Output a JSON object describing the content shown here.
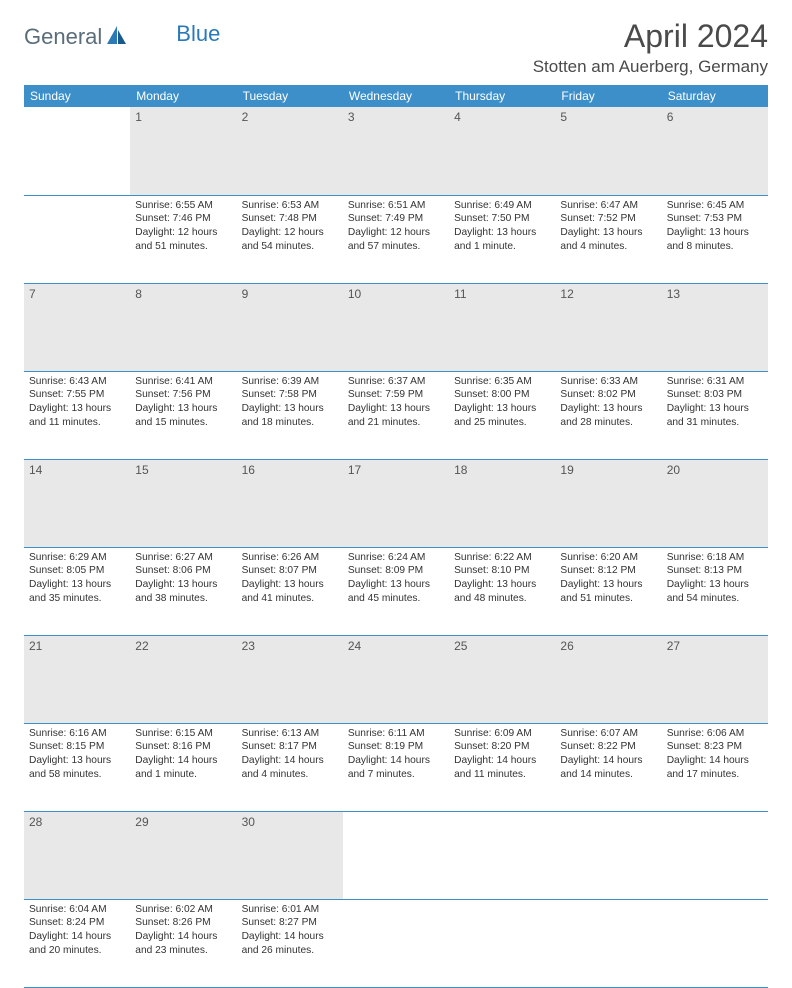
{
  "brand": {
    "part1": "General",
    "part2": "Blue"
  },
  "title": "April 2024",
  "location": "Stotten am Auerberg, Germany",
  "colors": {
    "header_bg": "#3d8fc9",
    "header_text": "#ffffff",
    "daynum_bg": "#e8e8e8",
    "border": "#3d8fc9",
    "brand_gray": "#5a6e7a",
    "brand_blue": "#2a7ab8"
  },
  "weekdays": [
    "Sunday",
    "Monday",
    "Tuesday",
    "Wednesday",
    "Thursday",
    "Friday",
    "Saturday"
  ],
  "weeks": [
    {
      "nums": [
        "",
        "1",
        "2",
        "3",
        "4",
        "5",
        "6"
      ],
      "cells": [
        "",
        "Sunrise: 6:55 AM\nSunset: 7:46 PM\nDaylight: 12 hours and 51 minutes.",
        "Sunrise: 6:53 AM\nSunset: 7:48 PM\nDaylight: 12 hours and 54 minutes.",
        "Sunrise: 6:51 AM\nSunset: 7:49 PM\nDaylight: 12 hours and 57 minutes.",
        "Sunrise: 6:49 AM\nSunset: 7:50 PM\nDaylight: 13 hours and 1 minute.",
        "Sunrise: 6:47 AM\nSunset: 7:52 PM\nDaylight: 13 hours and 4 minutes.",
        "Sunrise: 6:45 AM\nSunset: 7:53 PM\nDaylight: 13 hours and 8 minutes."
      ]
    },
    {
      "nums": [
        "7",
        "8",
        "9",
        "10",
        "11",
        "12",
        "13"
      ],
      "cells": [
        "Sunrise: 6:43 AM\nSunset: 7:55 PM\nDaylight: 13 hours and 11 minutes.",
        "Sunrise: 6:41 AM\nSunset: 7:56 PM\nDaylight: 13 hours and 15 minutes.",
        "Sunrise: 6:39 AM\nSunset: 7:58 PM\nDaylight: 13 hours and 18 minutes.",
        "Sunrise: 6:37 AM\nSunset: 7:59 PM\nDaylight: 13 hours and 21 minutes.",
        "Sunrise: 6:35 AM\nSunset: 8:00 PM\nDaylight: 13 hours and 25 minutes.",
        "Sunrise: 6:33 AM\nSunset: 8:02 PM\nDaylight: 13 hours and 28 minutes.",
        "Sunrise: 6:31 AM\nSunset: 8:03 PM\nDaylight: 13 hours and 31 minutes."
      ]
    },
    {
      "nums": [
        "14",
        "15",
        "16",
        "17",
        "18",
        "19",
        "20"
      ],
      "cells": [
        "Sunrise: 6:29 AM\nSunset: 8:05 PM\nDaylight: 13 hours and 35 minutes.",
        "Sunrise: 6:27 AM\nSunset: 8:06 PM\nDaylight: 13 hours and 38 minutes.",
        "Sunrise: 6:26 AM\nSunset: 8:07 PM\nDaylight: 13 hours and 41 minutes.",
        "Sunrise: 6:24 AM\nSunset: 8:09 PM\nDaylight: 13 hours and 45 minutes.",
        "Sunrise: 6:22 AM\nSunset: 8:10 PM\nDaylight: 13 hours and 48 minutes.",
        "Sunrise: 6:20 AM\nSunset: 8:12 PM\nDaylight: 13 hours and 51 minutes.",
        "Sunrise: 6:18 AM\nSunset: 8:13 PM\nDaylight: 13 hours and 54 minutes."
      ]
    },
    {
      "nums": [
        "21",
        "22",
        "23",
        "24",
        "25",
        "26",
        "27"
      ],
      "cells": [
        "Sunrise: 6:16 AM\nSunset: 8:15 PM\nDaylight: 13 hours and 58 minutes.",
        "Sunrise: 6:15 AM\nSunset: 8:16 PM\nDaylight: 14 hours and 1 minute.",
        "Sunrise: 6:13 AM\nSunset: 8:17 PM\nDaylight: 14 hours and 4 minutes.",
        "Sunrise: 6:11 AM\nSunset: 8:19 PM\nDaylight: 14 hours and 7 minutes.",
        "Sunrise: 6:09 AM\nSunset: 8:20 PM\nDaylight: 14 hours and 11 minutes.",
        "Sunrise: 6:07 AM\nSunset: 8:22 PM\nDaylight: 14 hours and 14 minutes.",
        "Sunrise: 6:06 AM\nSunset: 8:23 PM\nDaylight: 14 hours and 17 minutes."
      ]
    },
    {
      "nums": [
        "28",
        "29",
        "30",
        "",
        "",
        "",
        ""
      ],
      "cells": [
        "Sunrise: 6:04 AM\nSunset: 8:24 PM\nDaylight: 14 hours and 20 minutes.",
        "Sunrise: 6:02 AM\nSunset: 8:26 PM\nDaylight: 14 hours and 23 minutes.",
        "Sunrise: 6:01 AM\nSunset: 8:27 PM\nDaylight: 14 hours and 26 minutes.",
        "",
        "",
        "",
        ""
      ]
    }
  ]
}
